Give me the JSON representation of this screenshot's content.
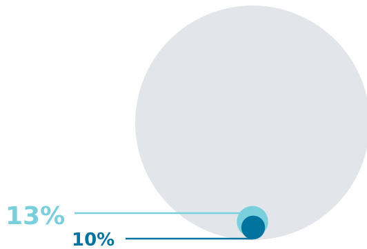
{
  "chart_data": {
    "type": "area",
    "title": "",
    "series": [
      {
        "value": 100,
        "color": "#E2E6EA"
      },
      {
        "value": 13,
        "label": "13%",
        "color": "#7ACFDD"
      },
      {
        "value": 10,
        "label": "10%",
        "color": "#00739E"
      }
    ]
  }
}
